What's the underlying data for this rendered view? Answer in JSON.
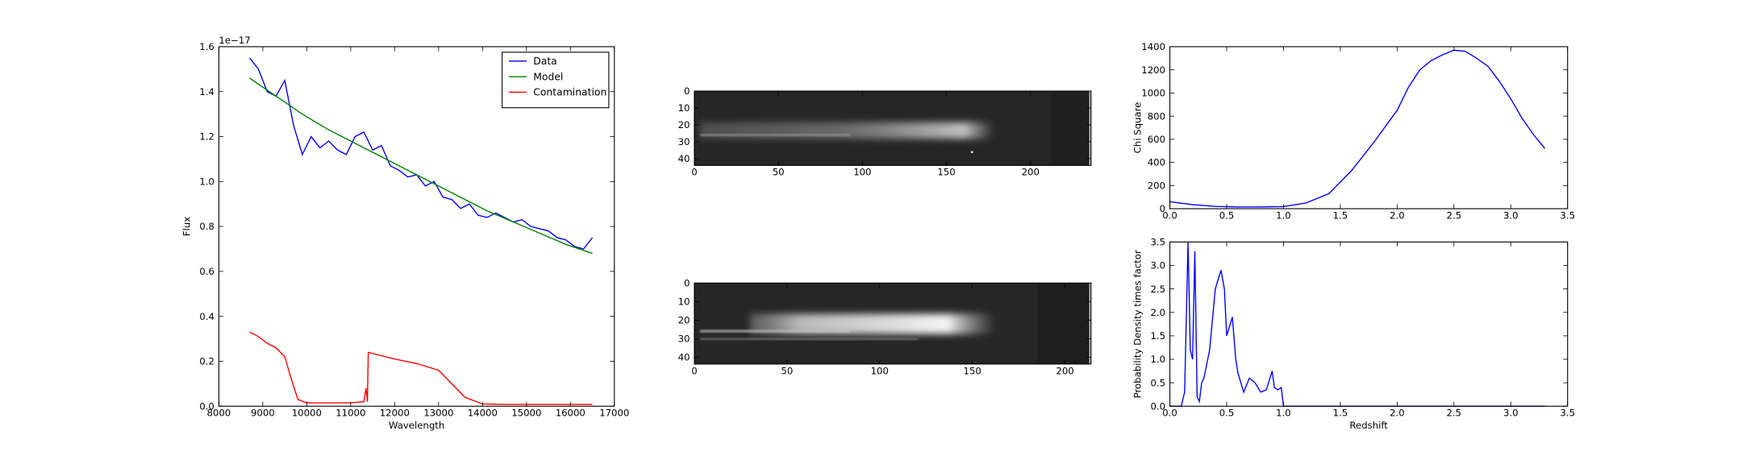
{
  "chart_data": [
    {
      "type": "line",
      "xlabel": "Wavelength",
      "ylabel": "Flux",
      "offset_text": "1e−17",
      "xlim": [
        8000,
        17000
      ],
      "xticks": [
        8000,
        9000,
        10000,
        11000,
        12000,
        13000,
        14000,
        15000,
        16000,
        17000
      ],
      "ylim": [
        0,
        1.6
      ],
      "yticks": [
        {
          "value": 0,
          "label": "0.0"
        },
        {
          "value": 0.2,
          "label": "0.2"
        },
        {
          "value": 0.4,
          "label": "0.4"
        },
        {
          "value": 0.6,
          "label": "0.6"
        },
        {
          "value": 0.8,
          "label": "0.8"
        },
        {
          "value": 1.0,
          "label": "1.0"
        },
        {
          "value": 1.2,
          "label": "1.2"
        },
        {
          "value": 1.4,
          "label": "1.4"
        },
        {
          "value": 1.6,
          "label": "1.6"
        }
      ],
      "legend": "upper right",
      "series": [
        {
          "name": "Data",
          "color": "#0000ff",
          "x": [
            8700,
            8900,
            9100,
            9300,
            9500,
            9700,
            9900,
            10100,
            10300,
            10500,
            10700,
            10900,
            11100,
            11300,
            11500,
            11700,
            11900,
            12100,
            12300,
            12500,
            12700,
            12900,
            13100,
            13300,
            13500,
            13700,
            13900,
            14100,
            14300,
            14500,
            14700,
            14900,
            15100,
            15300,
            15500,
            15700,
            15900,
            16100,
            16300,
            16500
          ],
          "values": [
            1.55,
            1.5,
            1.4,
            1.38,
            1.45,
            1.25,
            1.12,
            1.2,
            1.15,
            1.18,
            1.14,
            1.12,
            1.2,
            1.22,
            1.14,
            1.16,
            1.07,
            1.05,
            1.02,
            1.03,
            0.98,
            1.0,
            0.93,
            0.92,
            0.88,
            0.9,
            0.85,
            0.84,
            0.86,
            0.84,
            0.82,
            0.83,
            0.8,
            0.79,
            0.78,
            0.75,
            0.74,
            0.71,
            0.7,
            0.75
          ]
        },
        {
          "name": "Model",
          "color": "#008000",
          "x": [
            8700,
            9300,
            9900,
            10500,
            11100,
            11700,
            12300,
            12900,
            13500,
            14100,
            14700,
            15300,
            15900,
            16500
          ],
          "values": [
            1.46,
            1.38,
            1.3,
            1.23,
            1.17,
            1.11,
            1.05,
            0.99,
            0.93,
            0.87,
            0.82,
            0.77,
            0.72,
            0.68
          ]
        },
        {
          "name": "Contamination",
          "color": "#ff0000",
          "x": [
            8700,
            8900,
            9100,
            9300,
            9500,
            9650,
            9800,
            10000,
            10500,
            11000,
            11300,
            11350,
            11380,
            11400,
            11600,
            12000,
            12500,
            13000,
            13300,
            13600,
            14000,
            14500,
            15500,
            16500
          ],
          "values": [
            0.33,
            0.31,
            0.28,
            0.26,
            0.22,
            0.12,
            0.03,
            0.015,
            0.015,
            0.015,
            0.02,
            0.08,
            0.02,
            0.24,
            0.23,
            0.21,
            0.19,
            0.16,
            0.1,
            0.04,
            0.01,
            0.008,
            0.008,
            0.008
          ]
        }
      ]
    },
    {
      "type": "image",
      "xlim": [
        0,
        236
      ],
      "xticks": [
        0,
        50,
        100,
        150,
        200
      ],
      "ylim": [
        44,
        0
      ],
      "yticks": [
        0,
        10,
        20,
        30,
        40
      ]
    },
    {
      "type": "image",
      "xlim": [
        0,
        214
      ],
      "xticks": [
        0,
        50,
        100,
        150,
        200
      ],
      "ylim": [
        43.6,
        0
      ],
      "yticks": [
        0,
        10,
        20,
        30,
        40
      ]
    },
    {
      "type": "line",
      "ylabel": "Chi Square",
      "xlim": [
        0,
        3.5
      ],
      "xticks": [
        {
          "value": 0,
          "label": "0.0"
        },
        {
          "value": 0.5,
          "label": "0.5"
        },
        {
          "value": 1.0,
          "label": "1.0"
        },
        {
          "value": 1.5,
          "label": "1.5"
        },
        {
          "value": 2.0,
          "label": "2.0"
        },
        {
          "value": 2.5,
          "label": "2.5"
        },
        {
          "value": 3.0,
          "label": "3.0"
        },
        {
          "value": 3.5,
          "label": "3.5"
        }
      ],
      "ylim": [
        0,
        1400
      ],
      "yticks": [
        0,
        200,
        400,
        600,
        800,
        1000,
        1200,
        1400
      ],
      "series": [
        {
          "color": "#0000ff",
          "x": [
            0,
            0.2,
            0.4,
            0.6,
            0.8,
            1.0,
            1.2,
            1.4,
            1.6,
            1.8,
            2.0,
            2.1,
            2.2,
            2.3,
            2.4,
            2.5,
            2.6,
            2.7,
            2.8,
            2.9,
            3.0,
            3.1,
            3.2,
            3.3
          ],
          "values": [
            60,
            35,
            20,
            15,
            15,
            18,
            50,
            130,
            330,
            580,
            850,
            1050,
            1200,
            1280,
            1330,
            1370,
            1360,
            1300,
            1230,
            1100,
            950,
            780,
            640,
            520
          ]
        }
      ]
    },
    {
      "type": "line",
      "xlabel": "Redshift",
      "ylabel": "Probability Density times factor",
      "xlim": [
        0,
        3.5
      ],
      "xticks": [
        {
          "value": 0,
          "label": "0.0"
        },
        {
          "value": 0.5,
          "label": "0.5"
        },
        {
          "value": 1.0,
          "label": "1.0"
        },
        {
          "value": 1.5,
          "label": "1.5"
        },
        {
          "value": 2.0,
          "label": "2.0"
        },
        {
          "value": 2.5,
          "label": "2.5"
        },
        {
          "value": 3.0,
          "label": "3.0"
        },
        {
          "value": 3.5,
          "label": "3.5"
        }
      ],
      "ylim": [
        0,
        3.5
      ],
      "yticks": [
        {
          "value": 0,
          "label": "0.0"
        },
        {
          "value": 0.5,
          "label": "0.5"
        },
        {
          "value": 1.0,
          "label": "1.0"
        },
        {
          "value": 1.5,
          "label": "1.5"
        },
        {
          "value": 2.0,
          "label": "2.0"
        },
        {
          "value": 2.5,
          "label": "2.5"
        },
        {
          "value": 3.0,
          "label": "3.0"
        },
        {
          "value": 3.5,
          "label": "3.5"
        }
      ],
      "series": [
        {
          "color": "#0000ff",
          "x": [
            0,
            0.1,
            0.13,
            0.16,
            0.18,
            0.2,
            0.22,
            0.24,
            0.26,
            0.28,
            0.3,
            0.35,
            0.4,
            0.45,
            0.48,
            0.5,
            0.55,
            0.58,
            0.6,
            0.65,
            0.7,
            0.75,
            0.8,
            0.85,
            0.9,
            0.92,
            0.95,
            0.98,
            1.0,
            1.02,
            1.5,
            2.0,
            2.5,
            3.0,
            3.3
          ],
          "values": [
            0,
            0,
            0.3,
            3.5,
            1.2,
            1.0,
            3.3,
            0.2,
            0.1,
            0.5,
            0.6,
            1.2,
            2.5,
            2.9,
            2.5,
            1.5,
            1.9,
            1.0,
            0.7,
            0.3,
            0.6,
            0.5,
            0.3,
            0.35,
            0.75,
            0.4,
            0.35,
            0.4,
            0,
            0,
            0,
            0,
            0,
            0,
            0
          ]
        }
      ]
    }
  ]
}
